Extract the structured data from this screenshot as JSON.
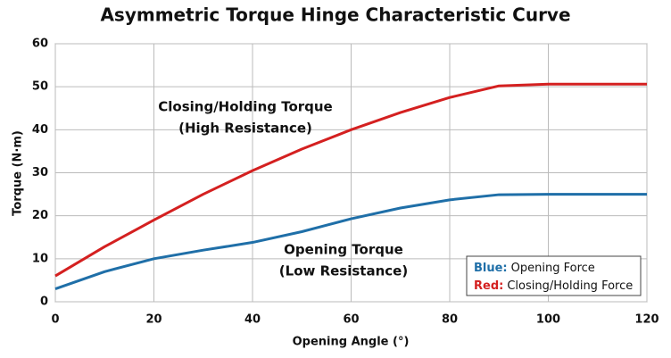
{
  "chart_data": {
    "type": "line",
    "title": "Asymmetric Torque Hinge Characteristic Curve",
    "x_label": "Opening Angle (°)",
    "y_label": "Torque (N·m)",
    "x": [
      0,
      10,
      20,
      30,
      40,
      50,
      60,
      70,
      80,
      90,
      100,
      110,
      120
    ],
    "series": [
      {
        "name": "Opening Force",
        "legend_label": "Blue:",
        "color": "#1f6fa8",
        "values": [
          3,
          7,
          10,
          12,
          13.8,
          16.3,
          19.3,
          21.8,
          23.7,
          24.9,
          25,
          25,
          25
        ]
      },
      {
        "name": "Closing/Holding Force",
        "legend_label": "Red:",
        "color": "#d42020",
        "values": [
          6,
          12.8,
          19,
          25,
          30.5,
          35.5,
          40,
          44,
          47.5,
          50.2,
          50.6,
          50.6,
          50.6
        ]
      }
    ],
    "annotations": [
      [
        "Closing/Holding Torque",
        "(High Resistance)"
      ],
      [
        "Opening Torque",
        "(Low Resistance)"
      ]
    ],
    "xlim": [
      0,
      120
    ],
    "xticks": [
      0,
      20,
      40,
      60,
      80,
      100,
      120
    ],
    "ylim": [
      0,
      60
    ],
    "yticks": [
      0,
      10,
      20,
      30,
      40,
      50,
      60
    ],
    "grid": true,
    "legend_position": "lower right"
  }
}
